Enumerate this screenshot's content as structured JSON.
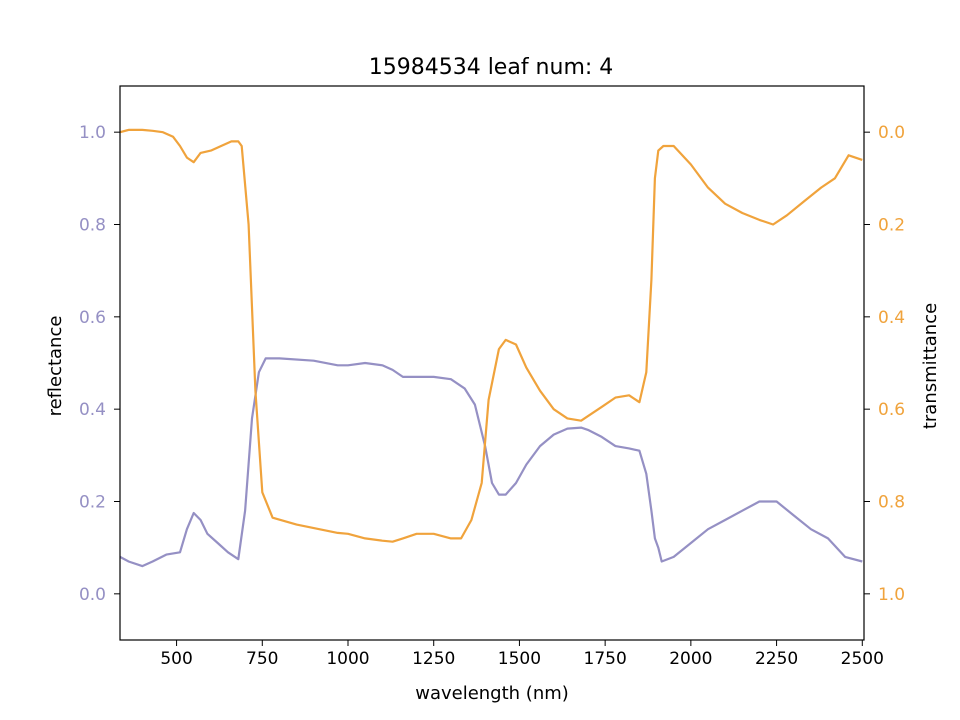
{
  "chart_data": {
    "type": "line",
    "title": "15984534 leaf num: 4",
    "xlabel": "wavelength (nm)",
    "ylabel_left": "reflectance",
    "ylabel_right": "transmittance",
    "xlim": [
      335,
      2505
    ],
    "ylim_left": [
      -0.1,
      1.1
    ],
    "ylim_right": [
      1.1,
      -0.1
    ],
    "right_axis_inverted": true,
    "x_ticks": [
      "500",
      "750",
      "1000",
      "1250",
      "1500",
      "1750",
      "2000",
      "2250",
      "2500"
    ],
    "y_left_ticks": [
      "0.0",
      "0.2",
      "0.4",
      "0.6",
      "0.8",
      "1.0"
    ],
    "y_right_ticks": [
      "0.0",
      "0.2",
      "0.4",
      "0.6",
      "0.8",
      "1.0"
    ],
    "grid": false,
    "legend": "none",
    "colors": {
      "reflectance": "#9590c4",
      "transmittance": "#f0a33c"
    },
    "series": [
      {
        "axis": "left",
        "x": [
          335,
          360,
          400,
          430,
          470,
          510,
          530,
          550,
          570,
          590,
          620,
          650,
          680,
          700,
          720,
          740,
          760,
          800,
          900,
          970,
          1000,
          1050,
          1100,
          1130,
          1160,
          1200,
          1250,
          1300,
          1340,
          1370,
          1400,
          1420,
          1440,
          1460,
          1490,
          1520,
          1560,
          1600,
          1640,
          1680,
          1700,
          1740,
          1780,
          1820,
          1850,
          1870,
          1885,
          1895,
          1905,
          1915,
          1950,
          2000,
          2050,
          2100,
          2150,
          2200,
          2250,
          2300,
          2350,
          2400,
          2450,
          2500
        ],
        "y": [
          0.08,
          0.07,
          0.06,
          0.07,
          0.085,
          0.09,
          0.14,
          0.175,
          0.16,
          0.13,
          0.11,
          0.09,
          0.075,
          0.18,
          0.38,
          0.48,
          0.51,
          0.51,
          0.505,
          0.495,
          0.495,
          0.5,
          0.495,
          0.485,
          0.47,
          0.47,
          0.47,
          0.465,
          0.445,
          0.41,
          0.32,
          0.24,
          0.215,
          0.215,
          0.24,
          0.28,
          0.32,
          0.345,
          0.358,
          0.36,
          0.355,
          0.34,
          0.32,
          0.315,
          0.31,
          0.26,
          0.18,
          0.12,
          0.1,
          0.07,
          0.08,
          0.11,
          0.14,
          0.16,
          0.18,
          0.2,
          0.2,
          0.17,
          0.14,
          0.12,
          0.08,
          0.07
        ]
      },
      {
        "axis": "right",
        "x": [
          335,
          360,
          400,
          430,
          460,
          490,
          510,
          530,
          550,
          570,
          600,
          630,
          660,
          680,
          690,
          710,
          730,
          750,
          780,
          850,
          970,
          1000,
          1050,
          1100,
          1130,
          1160,
          1200,
          1250,
          1300,
          1330,
          1360,
          1390,
          1410,
          1440,
          1460,
          1490,
          1520,
          1560,
          1600,
          1640,
          1680,
          1700,
          1740,
          1780,
          1820,
          1850,
          1870,
          1885,
          1895,
          1905,
          1920,
          1950,
          2000,
          2050,
          2100,
          2150,
          2200,
          2240,
          2280,
          2330,
          2380,
          2420,
          2460,
          2500
        ],
        "y": [
          0.0,
          -0.005,
          -0.005,
          -0.003,
          0.0,
          0.01,
          0.03,
          0.055,
          0.065,
          0.045,
          0.04,
          0.03,
          0.02,
          0.02,
          0.03,
          0.2,
          0.56,
          0.78,
          0.835,
          0.85,
          0.868,
          0.87,
          0.88,
          0.885,
          0.887,
          0.88,
          0.87,
          0.87,
          0.88,
          0.88,
          0.84,
          0.76,
          0.58,
          0.47,
          0.45,
          0.46,
          0.51,
          0.56,
          0.6,
          0.62,
          0.625,
          0.615,
          0.595,
          0.575,
          0.57,
          0.585,
          0.52,
          0.32,
          0.1,
          0.04,
          0.03,
          0.03,
          0.07,
          0.12,
          0.155,
          0.175,
          0.19,
          0.2,
          0.18,
          0.15,
          0.12,
          0.1,
          0.05,
          0.06
        ]
      }
    ]
  }
}
